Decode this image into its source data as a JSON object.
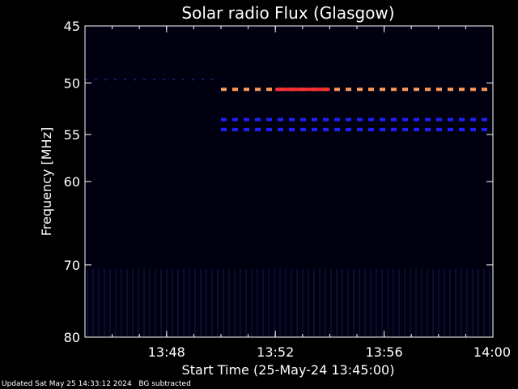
{
  "chart_data": {
    "type": "heatmap",
    "title": "Solar radio Flux (Glasgow)",
    "xlabel": "Start Time (25-May-24 13:45:00)",
    "ylabel": "Frequency [MHz]",
    "x_unit": "time (HH:MM)",
    "xlim": [
      "13:45",
      "14:00"
    ],
    "ylim": [
      45,
      80
    ],
    "x_ticks": [
      "13:48",
      "13:52",
      "13:56",
      "14:00"
    ],
    "y_ticks": [
      "45",
      "50",
      "55",
      "60",
      "70",
      "80"
    ],
    "y_scale": "non-linear (approximately log)",
    "background_color": "#000010",
    "bands": [
      {
        "freq_mhz": 50.6,
        "start": "13:50",
        "end": "14:00",
        "intensity": "high",
        "color": "#ff9a5a",
        "style": "dashed"
      },
      {
        "freq_mhz": 50.6,
        "start": "13:52",
        "end": "13:54",
        "intensity": "very high",
        "color": "#ff3030",
        "style": "solid"
      },
      {
        "freq_mhz": 53.5,
        "start": "13:50",
        "end": "14:00",
        "intensity": "medium",
        "color": "#2020ff",
        "style": "dashed"
      },
      {
        "freq_mhz": 54.5,
        "start": "13:50",
        "end": "14:00",
        "intensity": "medium",
        "color": "#2020ff",
        "style": "dashed"
      },
      {
        "freq_mhz": 49.7,
        "start": "13:45",
        "end": "13:50",
        "intensity": "low",
        "color": "#1a1a70",
        "style": "dotted"
      }
    ],
    "grid": false,
    "legend": "none"
  },
  "footer": {
    "updated": "Updated Sat May 25 14:33:12 2024",
    "note": "BG subtracted"
  }
}
